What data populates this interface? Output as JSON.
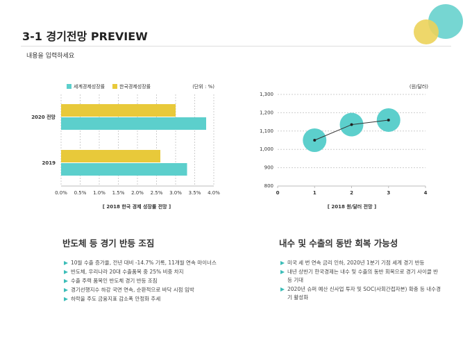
{
  "title": "3-1 경기전망 PREVIEW",
  "subtitle": "내용을 입력하세요",
  "chart_data": [
    {
      "type": "barh",
      "unit": "(단위 : %)",
      "caption": "[ 2018 한국 경제 성장률 전망 ]",
      "categories": [
        "2020 전망",
        "2019"
      ],
      "series": [
        {
          "name": "세계경제성장률",
          "color": "#5ccfcc",
          "values": [
            3.8,
            3.3
          ]
        },
        {
          "name": "한국경제성장률",
          "color": "#e8c93a",
          "values": [
            3.0,
            2.6
          ]
        }
      ],
      "xlim": [
        0,
        4
      ],
      "xticks": [
        {
          "value": 0,
          "label": "0.0%"
        },
        {
          "value": 0.5,
          "label": "0.5%"
        },
        {
          "value": 1,
          "label": "1.0%"
        },
        {
          "value": 1.5,
          "label": "1.5%"
        },
        {
          "value": 2,
          "label": "2.0%"
        },
        {
          "value": 2.5,
          "label": "2.5%"
        },
        {
          "value": 3,
          "label": "3.0%"
        },
        {
          "value": 3.5,
          "label": "3.5%"
        },
        {
          "value": 4,
          "label": "4.0%"
        }
      ],
      "grid": true
    },
    {
      "type": "line",
      "unit": "(원/달러)",
      "caption": "[ 2018 원/달러 전망 ]",
      "x": [
        1,
        2,
        3
      ],
      "values": [
        1050,
        1135,
        1160
      ],
      "color": "#5ccfcc",
      "xlim": [
        0,
        4
      ],
      "xticks": [
        0,
        1,
        2,
        3,
        4
      ],
      "ylim": [
        800,
        1300
      ],
      "yticks": [
        800,
        900,
        {
          "value": 1000,
          "label": "1,000"
        },
        {
          "value": 1100,
          "label": "1,100"
        },
        {
          "value": 1200,
          "label": "1,200"
        },
        {
          "value": 1300,
          "label": "1,300"
        }
      ],
      "grid": true
    }
  ],
  "sections": [
    {
      "heading": "반도체 등 경기 반등 조짐",
      "bullets": [
        "10월 수출 증가율, 전년 대비 -14.7% 기록, 11개월 연속 마이너스",
        "반도체, 우리나라 20대 수출품목 중 25% 비중 차지",
        "수출 주력 품목인 반도체 경기 반등 조짐",
        "경기선행지수 하강 국면 연속, 순환적으로 바닥 시점 임박",
        "하락을 주도 금융지표 감소폭 안정화 추세"
      ]
    },
    {
      "heading": "내수 및 수출의 동반 회복 가능성",
      "bullets": [
        "미국 세 번 연속 금리 인하, 2020년 1분기 기점 세계 경기 반등",
        "내년 상반기 한국경제는 내수 및 수출의 동반 회복으로 경기 사이클 반등 기대",
        "2020년 슈퍼 예산 신사업 투자 및 SOC(사회간접자본) 확충 등 내수경기 활성화"
      ]
    }
  ]
}
